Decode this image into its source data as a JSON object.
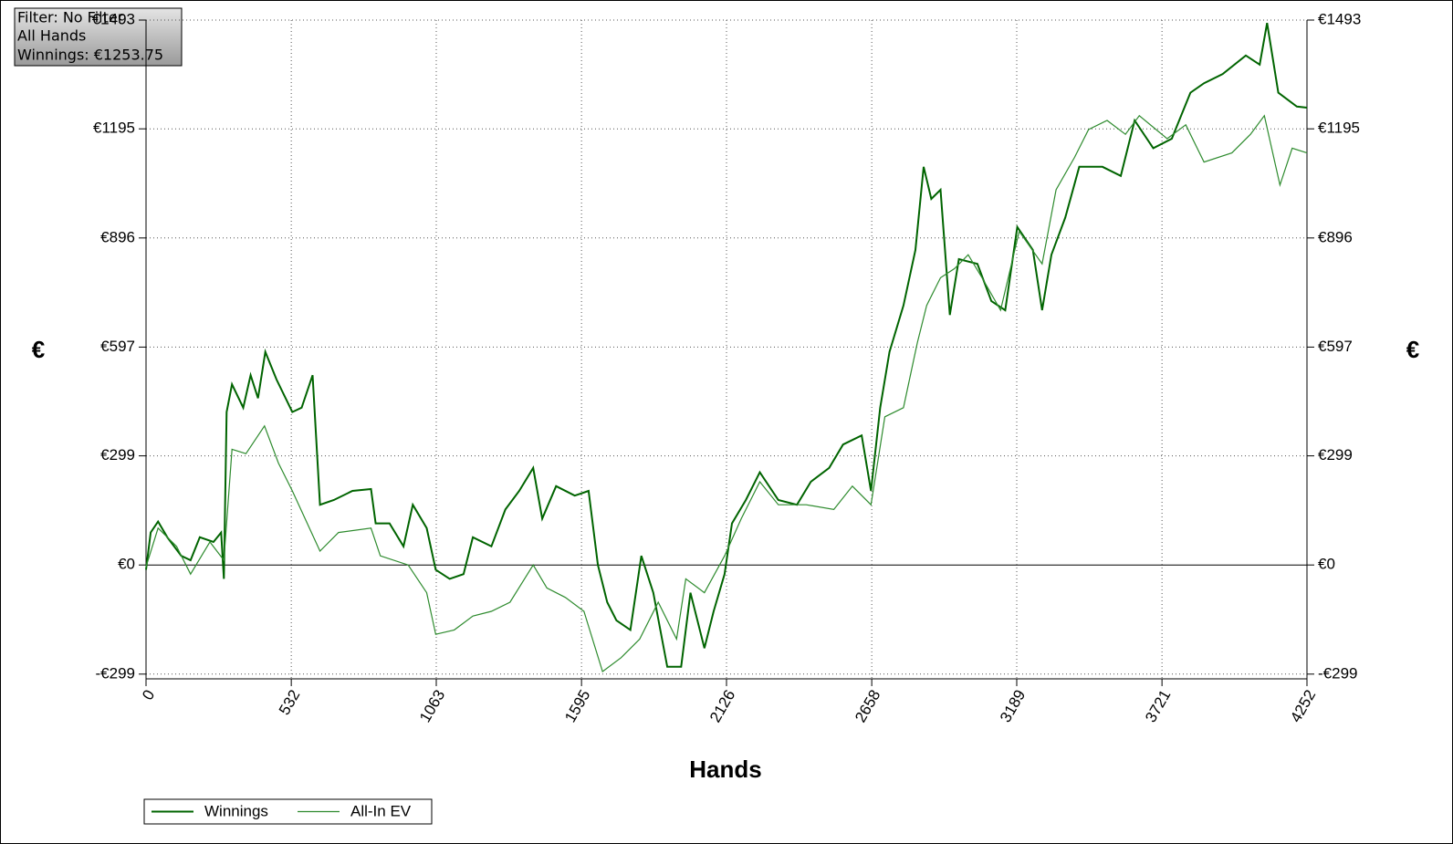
{
  "chart_data": {
    "type": "line",
    "xlabel": "Hands",
    "ylabel": "€",
    "annotations": [
      "Filter: No Filter",
      "All Hands",
      "Winnings: €1253.75"
    ],
    "xlim": [
      0,
      4252
    ],
    "xticks": [
      0,
      532,
      1063,
      1595,
      2126,
      2658,
      3189,
      3721,
      4252
    ],
    "ylim": [
      -312,
      1493
    ],
    "yticks": [
      {
        "value": -299,
        "label": "-€299"
      },
      {
        "value": 0,
        "label": "€0"
      },
      {
        "value": 299,
        "label": "€299"
      },
      {
        "value": 597,
        "label": "€597"
      },
      {
        "value": 896,
        "label": "€896"
      },
      {
        "value": 1195,
        "label": "€1195"
      },
      {
        "value": 1493,
        "label": "€1493"
      }
    ],
    "grid": true,
    "legend": "bottom-left",
    "series": [
      {
        "name": "Winnings",
        "color": "#006400",
        "x": [
          0,
          17,
          44,
          78,
          129,
          163,
          197,
          247,
          275,
          285,
          295,
          315,
          356,
          383,
          410,
          437,
          478,
          536,
          570,
          610,
          637,
          688,
          756,
          824,
          841,
          892,
          943,
          977,
          1028,
          1061,
          1112,
          1163,
          1197,
          1265,
          1316,
          1367,
          1418,
          1451,
          1502,
          1570,
          1621,
          1655,
          1689,
          1723,
          1774,
          1814,
          1858,
          1909,
          1960,
          1994,
          2045,
          2079,
          2119,
          2146,
          2197,
          2248,
          2316,
          2384,
          2435,
          2502,
          2553,
          2621,
          2655,
          2689,
          2723,
          2774,
          2818,
          2848,
          2876,
          2910,
          2944,
          2977,
          3045,
          3096,
          3147,
          3191,
          3248,
          3282,
          3316,
          3367,
          3418,
          3503,
          3570,
          3621,
          3689,
          3757,
          3825,
          3875,
          3943,
          4028,
          4079,
          4106,
          4147,
          4215,
          4252
        ],
        "values": [
          -13,
          89,
          119,
          76,
          25,
          13,
          76,
          63,
          89,
          -38,
          419,
          495,
          431,
          520,
          457,
          584,
          508,
          419,
          431,
          520,
          165,
          178,
          203,
          208,
          114,
          114,
          51,
          165,
          101,
          -13,
          -38,
          -25,
          76,
          51,
          152,
          203,
          266,
          127,
          216,
          190,
          203,
          0,
          -102,
          -152,
          -178,
          25,
          -76,
          -279,
          -279,
          -76,
          -228,
          -127,
          -25,
          114,
          178,
          254,
          178,
          165,
          228,
          266,
          330,
          355,
          203,
          431,
          584,
          711,
          863,
          1091,
          1003,
          1028,
          685,
          838,
          825,
          723,
          698,
          926,
          863,
          698,
          850,
          952,
          1091,
          1091,
          1066,
          1218,
          1142,
          1168,
          1294,
          1320,
          1345,
          1396,
          1371,
          1485,
          1294,
          1256,
          1253
        ]
      },
      {
        "name": "All-In EV",
        "color": "#2e8b2e",
        "x": [
          0,
          44,
          112,
          163,
          234,
          285,
          315,
          366,
          434,
          485,
          536,
          637,
          705,
          824,
          858,
          960,
          1028,
          1061,
          1129,
          1197,
          1265,
          1333,
          1418,
          1468,
          1536,
          1604,
          1672,
          1740,
          1808,
          1876,
          1943,
          1977,
          2045,
          2119,
          2180,
          2248,
          2316,
          2418,
          2519,
          2587,
          2655,
          2706,
          2774,
          2825,
          2859,
          2910,
          2961,
          3011,
          3062,
          3130,
          3198,
          3282,
          3333,
          3401,
          3452,
          3520,
          3587,
          3638,
          3740,
          3808,
          3875,
          3977,
          4045,
          4096,
          4153,
          4198,
          4252
        ],
        "values": [
          -5,
          101,
          51,
          -25,
          63,
          13,
          317,
          305,
          381,
          279,
          203,
          38,
          89,
          101,
          25,
          0,
          -76,
          -190,
          -178,
          -140,
          -127,
          -102,
          0,
          -63,
          -89,
          -127,
          -292,
          -254,
          -203,
          -102,
          -203,
          -38,
          -76,
          25,
          127,
          228,
          165,
          165,
          152,
          216,
          165,
          406,
          431,
          609,
          711,
          787,
          812,
          850,
          787,
          698,
          914,
          825,
          1028,
          1117,
          1193,
          1218,
          1180,
          1231,
          1168,
          1206,
          1104,
          1129,
          1180,
          1231,
          1041,
          1142,
          1129
        ]
      }
    ]
  }
}
